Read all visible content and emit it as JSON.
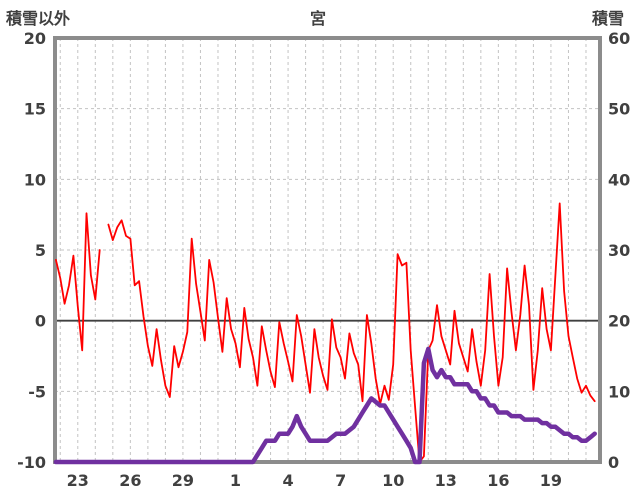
{
  "header": {
    "left_axis_title": "積雪以外",
    "title": "宮",
    "right_axis_title": "積雪"
  },
  "chart_data": {
    "type": "line",
    "title": "宮",
    "left_axis": {
      "label": "積雪以外",
      "min": -10,
      "max": 20,
      "ticks": [
        20,
        15,
        10,
        5,
        0,
        -5,
        -10
      ]
    },
    "right_axis": {
      "label": "積雪",
      "min": 0,
      "max": 60,
      "ticks": [
        60,
        50,
        40,
        30,
        20,
        10,
        0
      ]
    },
    "x_axis": {
      "tick_labels": [
        "23",
        "26",
        "29",
        "1",
        "4",
        "7",
        "10",
        "13",
        "16",
        "19"
      ],
      "tick_days": [
        23,
        26,
        29,
        32,
        35,
        38,
        41,
        44,
        47,
        50
      ],
      "min_day": 21.7,
      "max_day": 52.8,
      "minor_grid_step_days": 1,
      "grid": "dashed"
    },
    "colors": {
      "grid": "#c3c3c3",
      "frame": "#8c8c8c",
      "text": "#404040",
      "zero_line": "#404040",
      "background": "#ffffff"
    },
    "series": [
      {
        "name": "積雪以外",
        "axis": "left",
        "color": "#ff0000",
        "width": 1.8,
        "start_day": 21.75,
        "step_days": 0.25,
        "values": [
          4.3,
          3.0,
          1.2,
          2.5,
          4.6,
          1.0,
          -2.1,
          7.6,
          3.2,
          1.5,
          5.0,
          null,
          6.8,
          5.7,
          6.6,
          7.1,
          6.0,
          5.8,
          2.5,
          2.8,
          0.3,
          -1.8,
          -3.2,
          -0.6,
          -2.8,
          -4.6,
          -5.4,
          -1.8,
          -3.3,
          -2.2,
          -0.8,
          5.8,
          2.6,
          0.6,
          -1.4,
          4.3,
          2.7,
          0.2,
          -2.2,
          1.6,
          -0.6,
          -1.6,
          -3.3,
          0.9,
          -1.3,
          -2.6,
          -4.6,
          -0.4,
          -2.1,
          -3.6,
          -4.7,
          -0.1,
          -1.6,
          -2.9,
          -4.3,
          0.4,
          -1.1,
          -3.1,
          -5.1,
          -0.6,
          -2.6,
          -3.9,
          -4.9,
          0.1,
          -1.9,
          -2.6,
          -4.1,
          -0.9,
          -2.3,
          -3.1,
          -5.7,
          0.4,
          -1.6,
          -4.1,
          -5.9,
          -4.6,
          -5.6,
          -3.1,
          4.7,
          3.9,
          4.1,
          -2.1,
          -6.1,
          -10.0,
          -9.6,
          -2.1,
          -1.4,
          1.1,
          -1.1,
          -2.1,
          -3.1,
          0.7,
          -1.6,
          -2.6,
          -3.6,
          -0.6,
          -2.9,
          -4.6,
          -2.1,
          3.3,
          -1.1,
          -4.6,
          -2.6,
          3.7,
          0.6,
          -2.1,
          0.4,
          3.9,
          1.1,
          -4.9,
          -2.1,
          2.3,
          -0.6,
          -2.1,
          3.1,
          8.3,
          2.1,
          -1.1,
          -2.6,
          -4.1,
          -5.1,
          -4.6,
          -5.3,
          -5.7
        ]
      },
      {
        "name": "積雪",
        "axis": "right",
        "color": "#7030a0",
        "width": 4.5,
        "start_day": 21.75,
        "step_days": 0.25,
        "values": [
          0,
          0,
          0,
          0,
          0,
          0,
          0,
          0,
          0,
          0,
          0,
          0,
          0,
          0,
          0,
          0,
          0,
          0,
          0,
          0,
          0,
          0,
          0,
          0,
          0,
          0,
          0,
          0,
          0,
          0,
          0,
          0,
          0,
          0,
          0,
          0,
          0,
          0,
          0,
          0,
          0,
          0,
          0,
          0,
          0,
          0,
          1,
          2,
          3,
          3,
          3,
          4,
          4,
          4,
          5,
          6.5,
          5,
          4,
          3,
          3,
          3,
          3,
          3,
          3.5,
          4,
          4,
          4,
          4.5,
          5,
          6,
          7,
          8,
          9,
          8.5,
          8,
          8,
          7,
          6,
          5,
          4,
          3,
          2,
          0,
          0,
          14,
          16,
          13,
          12,
          13,
          12,
          12,
          11,
          11,
          11,
          11,
          10,
          10,
          9,
          9,
          8,
          8,
          7,
          7,
          7,
          6.5,
          6.5,
          6.5,
          6,
          6,
          6,
          6,
          5.5,
          5.5,
          5,
          5,
          4.5,
          4,
          4,
          3.5,
          3.5,
          3,
          3,
          3.5,
          4
        ]
      }
    ]
  }
}
